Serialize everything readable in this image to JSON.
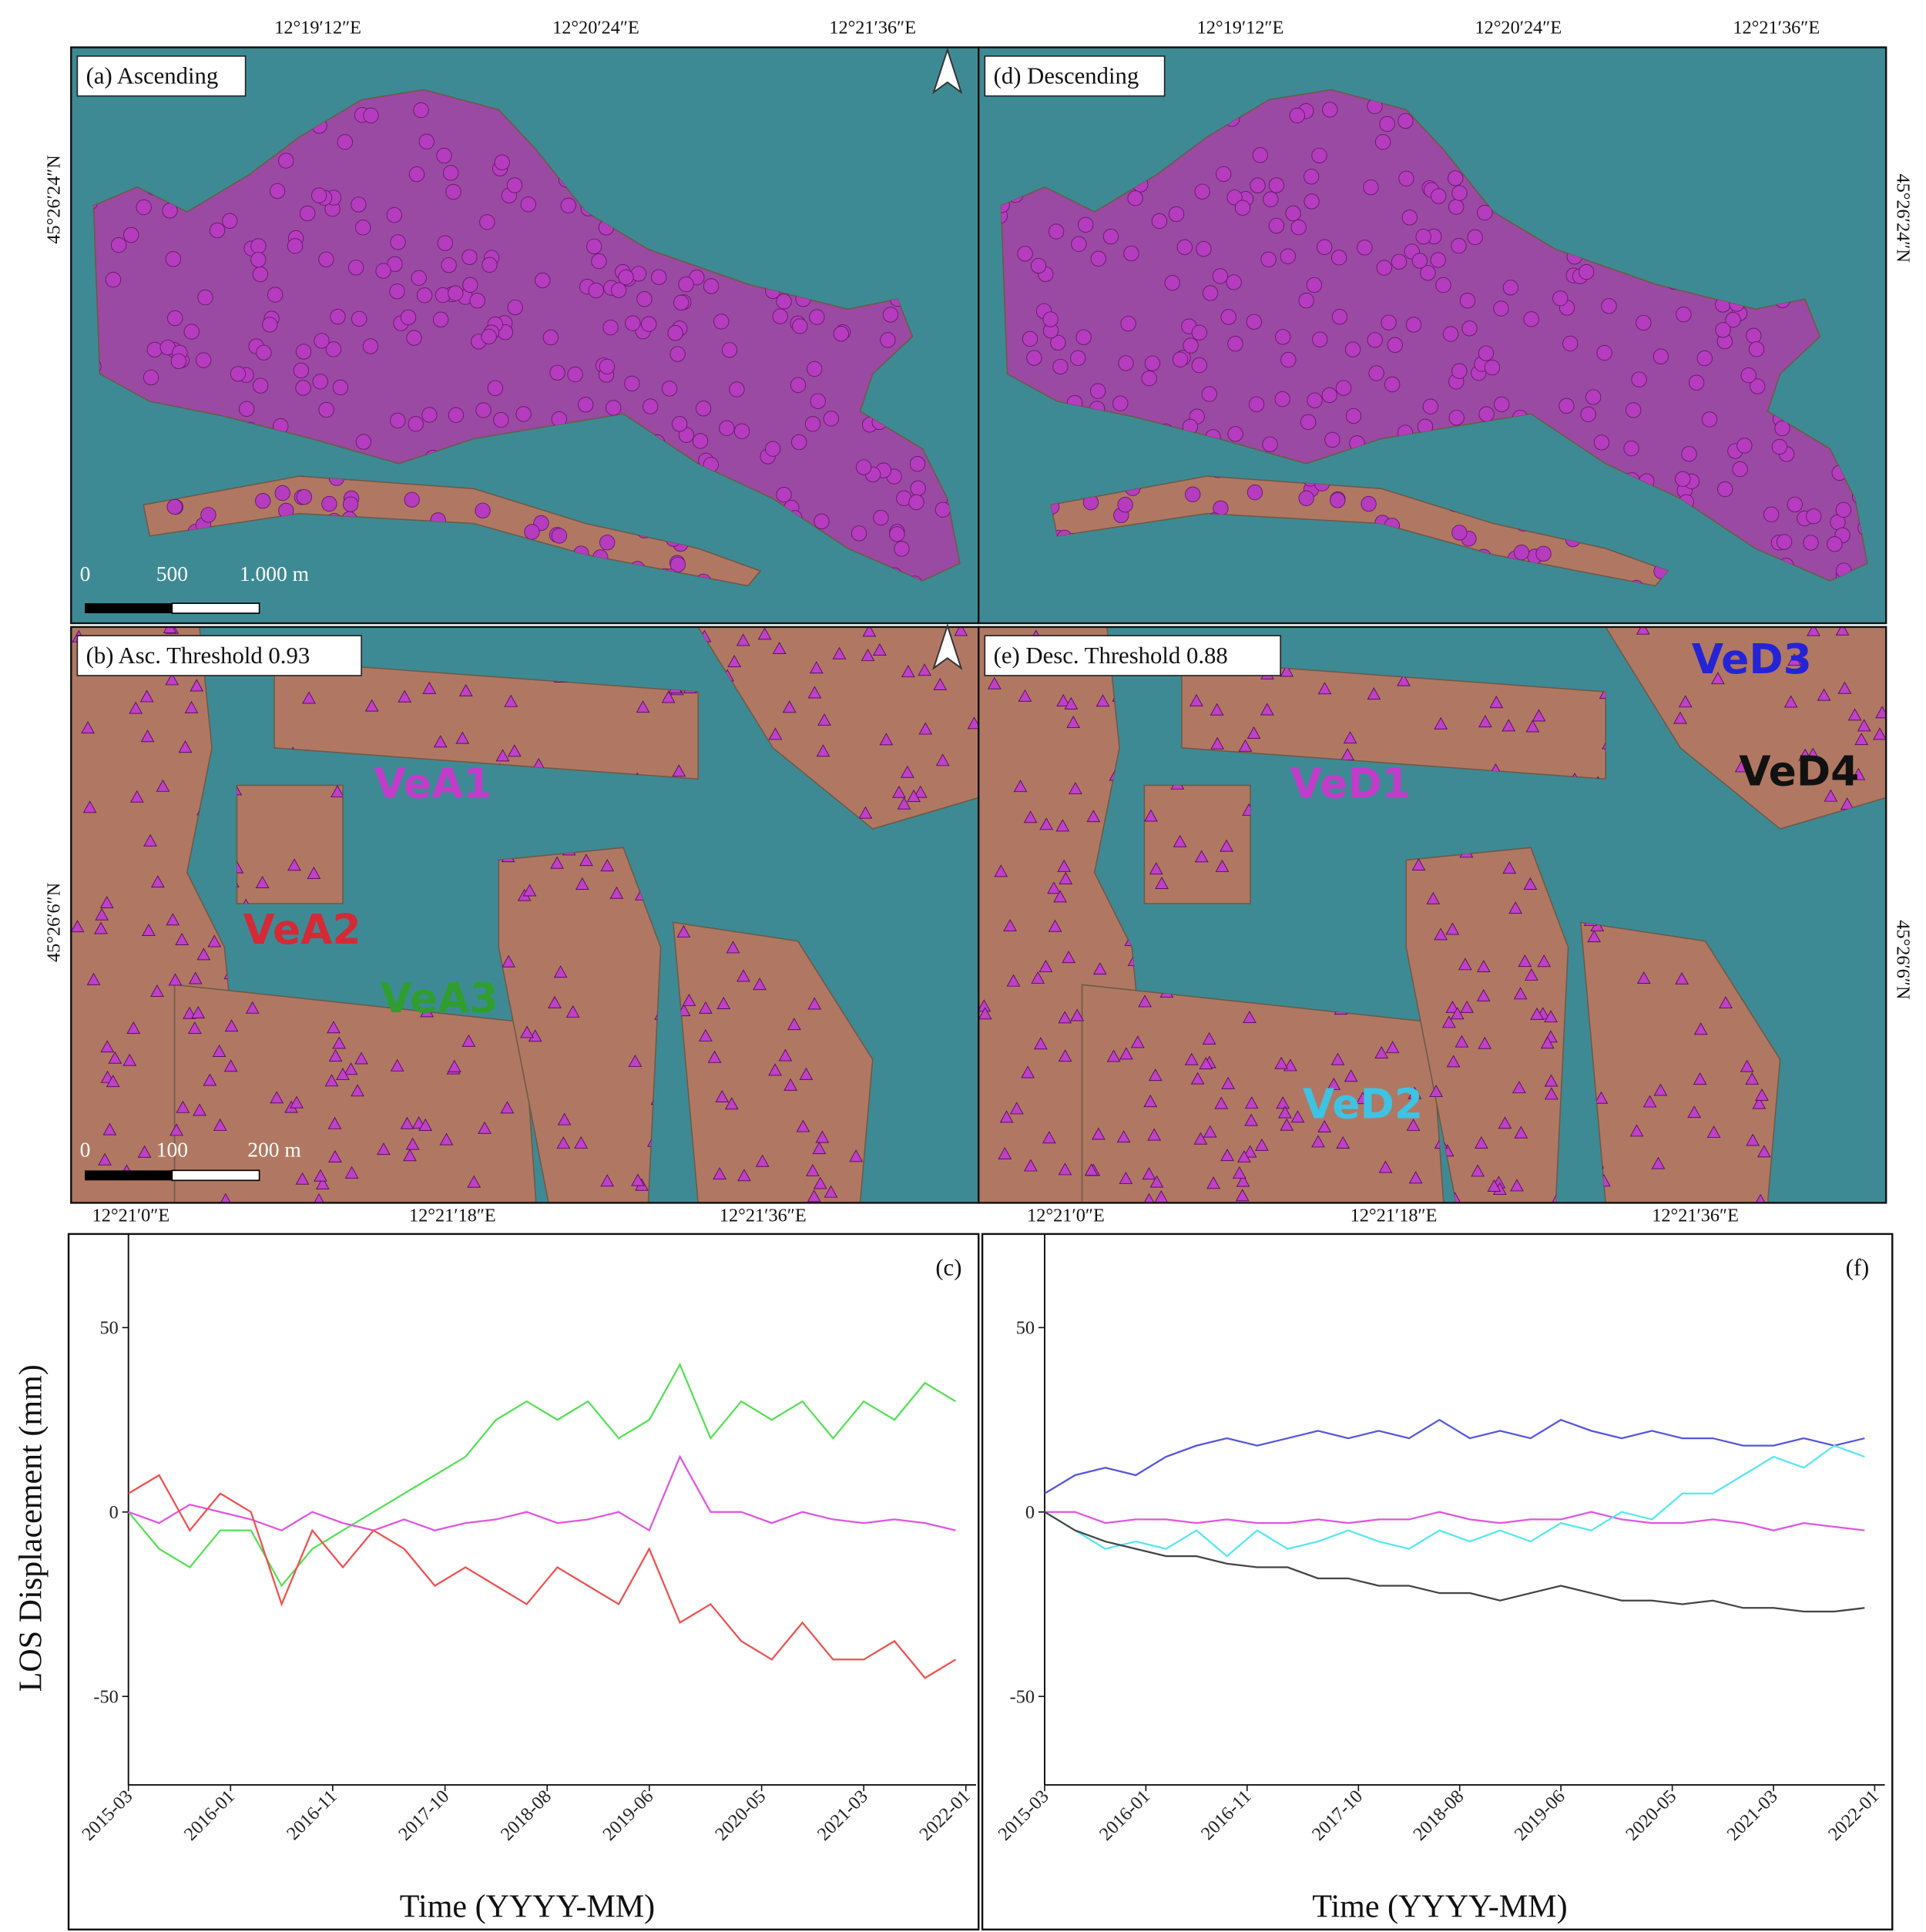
{
  "map_panels": [
    {
      "title": "(a) Ascending",
      "scale_labels": [
        "0",
        "500",
        "1.000 m"
      ]
    },
    {
      "title": "(b) Asc. Threshold 0.93",
      "scale_labels": [
        "0",
        "100",
        "200 m"
      ],
      "labels": [
        {
          "text": "VeA1",
          "color": "#c23bc9"
        },
        {
          "text": "VeA2",
          "color": "#d42a35"
        },
        {
          "text": "VeA3",
          "color": "#2f9e2f"
        }
      ]
    },
    {
      "title": "(d) Descending"
    },
    {
      "title": "(e) Desc. Threshold 0.88",
      "labels": [
        {
          "text": "VeD1",
          "color": "#c23bc9"
        },
        {
          "text": "VeD2",
          "color": "#3ec3e3"
        },
        {
          "text": "VeD3",
          "color": "#2424d6"
        },
        {
          "text": "VeD4",
          "color": "#111111"
        }
      ]
    }
  ],
  "longitude_labels": {
    "top_left": [
      "12°19′12″E",
      "12°20′24″E",
      "12°21′36″E"
    ],
    "top_right": [
      "12°19′12″E",
      "12°20′24″E",
      "12°21′36″E"
    ],
    "bottom_left": [
      "12°21′0″E",
      "12°21′18″E",
      "12°21′36″E"
    ],
    "bottom_right": [
      "12°21′0″E",
      "12°21′18″E",
      "12°21′36″E"
    ]
  },
  "latitude_labels": {
    "left": [
      "45°26′24″N",
      "45°26′6″N"
    ],
    "right": [
      "45°26′24″N",
      "45°26′6″N"
    ]
  },
  "chart_data": [
    {
      "type": "line",
      "panel_label": "(c)",
      "y_label": "LOS Displacement (mm)",
      "x_label": "Time (YYYY-MM)",
      "x": [
        "2015-03",
        "2015-06",
        "2015-09",
        "2015-12",
        "2016-03",
        "2016-06",
        "2016-09",
        "2016-12",
        "2017-03",
        "2017-06",
        "2017-09",
        "2017-12",
        "2018-03",
        "2018-06",
        "2018-09",
        "2018-12",
        "2019-03",
        "2019-06",
        "2019-09",
        "2019-12",
        "2020-03",
        "2020-06",
        "2020-09",
        "2020-12",
        "2021-03",
        "2021-06",
        "2021-09",
        "2021-12"
      ],
      "xlim": [
        "2015-03",
        "2022-02"
      ],
      "xticks": [
        "2015-03",
        "2016-01",
        "2016-11",
        "2017-10",
        "2018-08",
        "2019-06",
        "2020-05",
        "2021-03",
        "2022-01"
      ],
      "ylim": [
        -74,
        72
      ],
      "yticks": [
        -50,
        0,
        50
      ],
      "series": [
        {
          "color": "#55e055",
          "values": [
            0,
            -10,
            -15,
            -5,
            -5,
            -20,
            -10,
            -5,
            0,
            5,
            10,
            15,
            25,
            30,
            25,
            30,
            20,
            25,
            40,
            20,
            30,
            25,
            30,
            20,
            30,
            25,
            35,
            30
          ]
        },
        {
          "color": "#e055e0",
          "values": [
            0,
            -3,
            2,
            0,
            -2,
            -5,
            0,
            -3,
            -5,
            -2,
            -5,
            -3,
            -2,
            0,
            -3,
            -2,
            0,
            -5,
            15,
            0,
            0,
            -3,
            0,
            -2,
            -3,
            -2,
            -3,
            -5
          ]
        },
        {
          "color": "#f05050",
          "values": [
            5,
            10,
            -5,
            5,
            0,
            -25,
            -5,
            -15,
            -5,
            -10,
            -20,
            -15,
            -20,
            -25,
            -15,
            -20,
            -25,
            -10,
            -30,
            -25,
            -35,
            -40,
            -30,
            -40,
            -40,
            -35,
            -45,
            -40
          ]
        }
      ]
    },
    {
      "type": "line",
      "panel_label": "(f)",
      "x_label": "Time (YYYY-MM)",
      "x": [
        "2015-03",
        "2015-06",
        "2015-09",
        "2015-12",
        "2016-03",
        "2016-06",
        "2016-09",
        "2016-12",
        "2017-03",
        "2017-06",
        "2017-09",
        "2017-12",
        "2018-03",
        "2018-06",
        "2018-09",
        "2018-12",
        "2019-03",
        "2019-06",
        "2019-09",
        "2019-12",
        "2020-03",
        "2020-06",
        "2020-09",
        "2020-12",
        "2021-03",
        "2021-06",
        "2021-09",
        "2021-12"
      ],
      "xlim": [
        "2015-03",
        "2022-02"
      ],
      "xticks": [
        "2015-03",
        "2016-01",
        "2016-11",
        "2017-10",
        "2018-08",
        "2019-06",
        "2020-05",
        "2021-03",
        "2022-01"
      ],
      "ylim": [
        -74,
        72
      ],
      "yticks": [
        -50,
        0,
        50
      ],
      "series": [
        {
          "color": "#5555e0",
          "values": [
            5,
            10,
            12,
            10,
            15,
            18,
            20,
            18,
            20,
            22,
            20,
            22,
            20,
            25,
            20,
            22,
            20,
            25,
            22,
            20,
            22,
            20,
            20,
            18,
            18,
            20,
            18,
            20
          ]
        },
        {
          "color": "#e055e0",
          "values": [
            0,
            0,
            -3,
            -2,
            -2,
            -3,
            -2,
            -3,
            -3,
            -2,
            -3,
            -2,
            -2,
            0,
            -2,
            -3,
            -2,
            -2,
            0,
            -2,
            -3,
            -3,
            -2,
            -3,
            -5,
            -3,
            -4,
            -5
          ]
        },
        {
          "color": "#55e8ee",
          "values": [
            0,
            -5,
            -10,
            -8,
            -10,
            -5,
            -12,
            -5,
            -10,
            -8,
            -5,
            -8,
            -10,
            -5,
            -8,
            -5,
            -8,
            -3,
            -5,
            0,
            -2,
            5,
            5,
            10,
            15,
            12,
            18,
            15
          ]
        },
        {
          "color": "#444444",
          "values": [
            0,
            -5,
            -8,
            -10,
            -12,
            -12,
            -14,
            -15,
            -15,
            -18,
            -18,
            -20,
            -20,
            -22,
            -22,
            -24,
            -22,
            -20,
            -22,
            -24,
            -24,
            -25,
            -24,
            -26,
            -26,
            -27,
            -27,
            -26
          ]
        }
      ]
    }
  ]
}
